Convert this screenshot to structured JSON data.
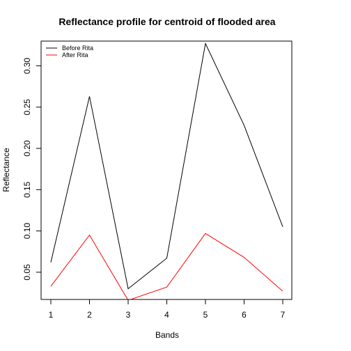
{
  "chart_data": {
    "type": "line",
    "title": "Reflectance profile for centroid of flooded area",
    "xlabel": "Bands",
    "ylabel": "Reflectance",
    "x": [
      1,
      2,
      3,
      4,
      5,
      6,
      7
    ],
    "xlim": [
      1,
      7
    ],
    "ylim": [
      0.017,
      0.33
    ],
    "x_ticks": [
      1,
      2,
      3,
      4,
      5,
      6,
      7
    ],
    "y_ticks": [
      0.05,
      0.1,
      0.15,
      0.2,
      0.25,
      0.3
    ],
    "y_tick_labels": [
      "0.05",
      "0.10",
      "0.15",
      "0.20",
      "0.25",
      "0.30"
    ],
    "legend_position": "top-left",
    "grid": false,
    "series": [
      {
        "name": "Before Rita",
        "color": "#000000",
        "values": [
          0.062,
          0.263,
          0.03,
          0.067,
          0.327,
          0.228,
          0.105
        ]
      },
      {
        "name": "After Rita",
        "color": "#ff0000",
        "values": [
          0.033,
          0.095,
          0.016,
          0.032,
          0.097,
          0.068,
          0.027
        ]
      }
    ]
  }
}
